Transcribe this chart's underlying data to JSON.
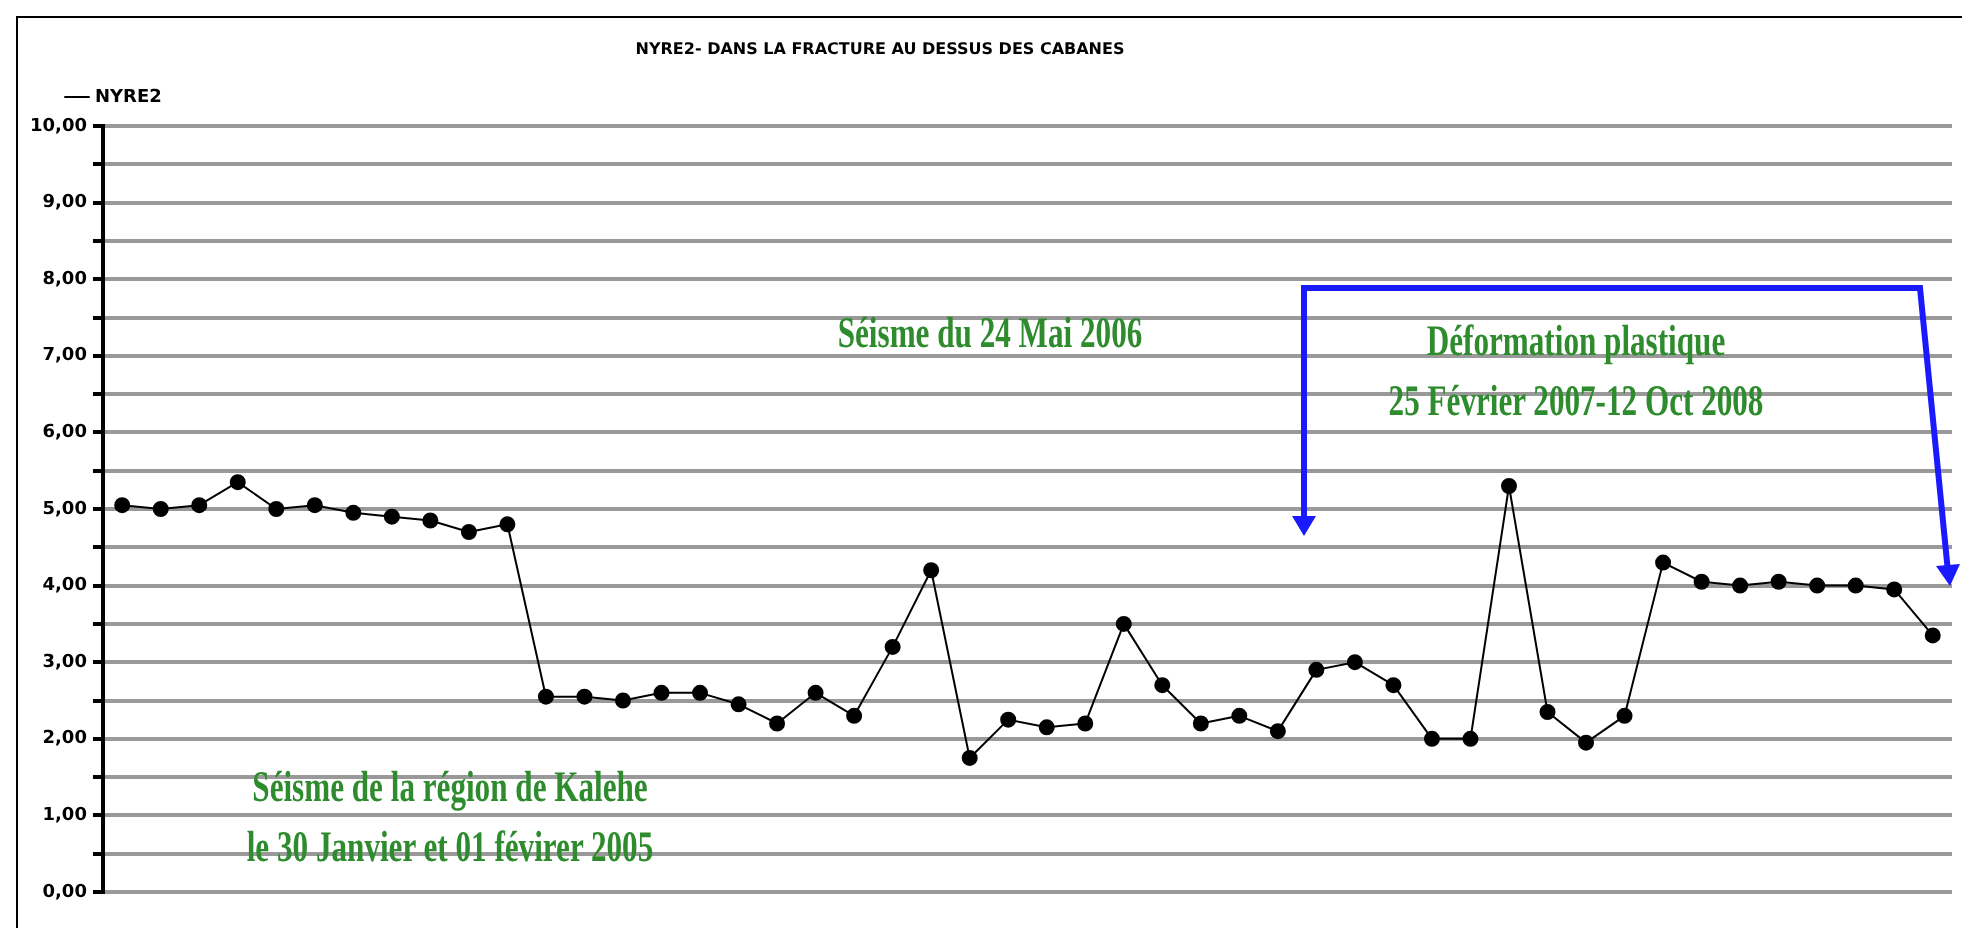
{
  "chart_data": {
    "type": "line",
    "title": "NYRE2- DANS LA FRACTURE AU DESSUS DES CABANES",
    "categories": [
      null,
      null,
      null,
      null,
      null,
      null,
      null,
      null,
      null,
      null,
      null,
      null,
      null,
      null,
      null,
      null,
      null,
      null,
      null,
      null,
      null,
      null,
      null,
      null,
      null,
      null,
      null,
      null,
      null,
      null,
      null,
      null,
      null,
      null,
      null,
      null,
      null,
      null,
      null,
      null,
      null,
      null,
      null,
      null,
      null,
      null,
      null,
      null
    ],
    "series": [
      {
        "name": "NYRE2",
        "color": "#000000",
        "values": [
          5.05,
          5.0,
          5.05,
          5.35,
          5.0,
          5.05,
          4.95,
          4.9,
          4.85,
          4.7,
          4.8,
          2.55,
          2.55,
          2.5,
          2.6,
          2.6,
          2.45,
          2.2,
          2.6,
          2.3,
          3.2,
          4.2,
          1.75,
          2.25,
          2.15,
          2.2,
          3.5,
          2.7,
          2.2,
          2.3,
          2.1,
          2.9,
          3.0,
          2.7,
          2.0,
          2.0,
          5.3,
          2.35,
          1.95,
          2.3,
          4.3,
          4.05,
          4.0,
          4.05,
          4.0,
          4.0,
          3.95,
          3.35
        ]
      }
    ],
    "ylim": [
      0,
      10
    ],
    "yticks": [
      {
        "value": 0,
        "label": "0,00"
      },
      {
        "value": 0.5,
        "label": null
      },
      {
        "value": 1,
        "label": "1,00"
      },
      {
        "value": 1.5,
        "label": null
      },
      {
        "value": 2,
        "label": "2,00"
      },
      {
        "value": 2.5,
        "label": null
      },
      {
        "value": 3,
        "label": "3,00"
      },
      {
        "value": 3.5,
        "label": null
      },
      {
        "value": 4,
        "label": "4,00"
      },
      {
        "value": 4.5,
        "label": null
      },
      {
        "value": 5,
        "label": "5,00"
      },
      {
        "value": 5.5,
        "label": null
      },
      {
        "value": 6,
        "label": "6,00"
      },
      {
        "value": 6.5,
        "label": null
      },
      {
        "value": 7,
        "label": "7,00"
      },
      {
        "value": 7.5,
        "label": null
      },
      {
        "value": 8,
        "label": "8,00"
      },
      {
        "value": 8.5,
        "label": null
      },
      {
        "value": 9,
        "label": "9,00"
      },
      {
        "value": 9.5,
        "label": null
      },
      {
        "value": 10,
        "label": "10,00"
      }
    ],
    "grid": "y",
    "legend": "top left",
    "marker": "circle",
    "line_style": "solid",
    "tick_labels": "y",
    "annotations": [
      "Séisme de la région de Kalehe\nle 30 Janvier et 01 févirer 2005",
      "Séisme du 24 Mai 2006",
      "Déformation plastique\n25 Février 2007-12 Oct 2008"
    ]
  }
}
